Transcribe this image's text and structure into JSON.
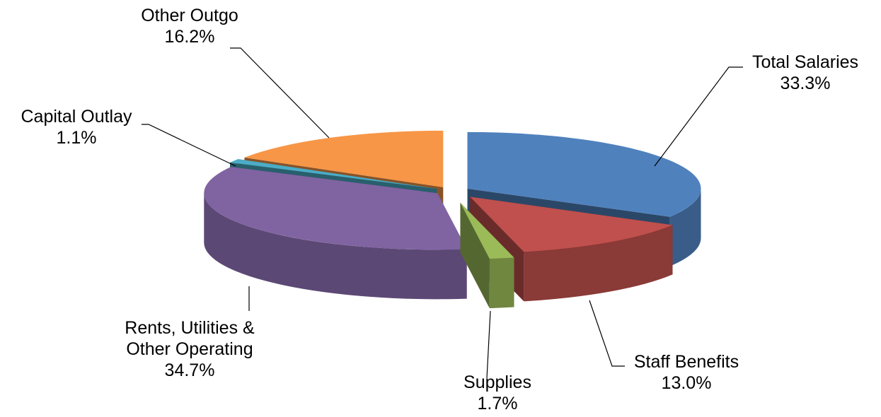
{
  "chart_data": {
    "type": "pie",
    "title": "",
    "style": "3d-exploded",
    "slices": [
      {
        "label_lines": [
          "Total Salaries"
        ],
        "value_label": "33.3%",
        "value": 33.3,
        "color": "#4F81BD"
      },
      {
        "label_lines": [
          "Staff Benefits"
        ],
        "value_label": "13.0%",
        "value": 13.0,
        "color": "#C0504D"
      },
      {
        "label_lines": [
          "Supplies"
        ],
        "value_label": "1.7%",
        "value": 1.7,
        "color": "#9BBB59"
      },
      {
        "label_lines": [
          "Rents, Utilities &",
          "Other Operating"
        ],
        "value_label": "34.7%",
        "value": 34.7,
        "color": "#8064A2"
      },
      {
        "label_lines": [
          "Capital Outlay"
        ],
        "value_label": "1.1%",
        "value": 1.1,
        "color": "#4BACC6"
      },
      {
        "label_lines": [
          "Other Outgo"
        ],
        "value_label": "16.2%",
        "value": 16.2,
        "color": "#F79646"
      }
    ]
  }
}
